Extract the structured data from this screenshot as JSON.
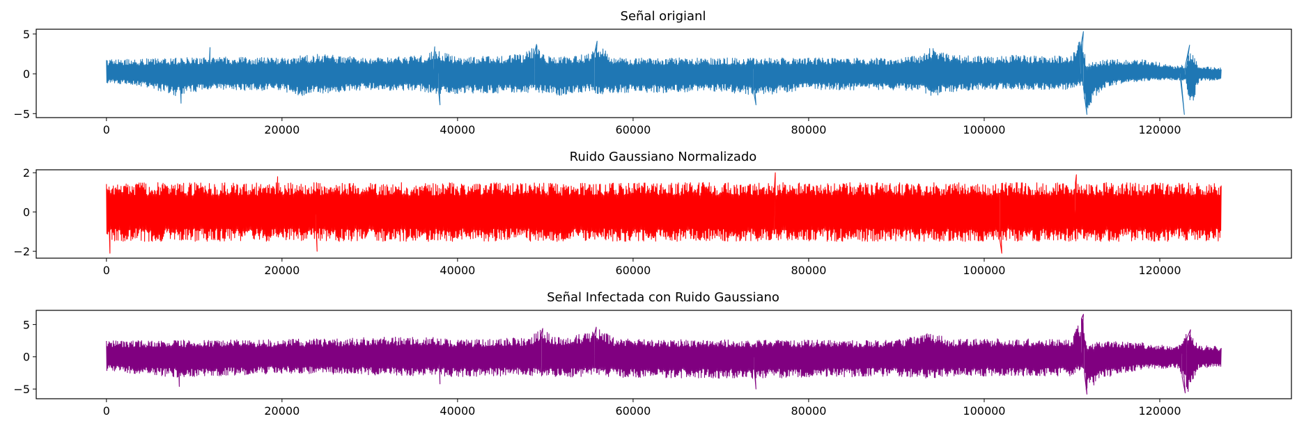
{
  "chart_data": [
    {
      "type": "line",
      "title": "Señal origianl",
      "xlabel": "",
      "ylabel": "",
      "xlim": [
        -8000,
        135000
      ],
      "ylim": [
        -5.5,
        5.6
      ],
      "x_ticks": [
        0,
        20000,
        40000,
        60000,
        80000,
        100000,
        120000
      ],
      "y_ticks": [
        -5,
        0,
        5
      ],
      "grid": false,
      "series": [
        {
          "color": "#1f77b4",
          "n_samples": 127000,
          "envelope": {
            "x": [
              0,
              2000,
              5000,
              8000,
              12000,
              20000,
              22000,
              24000,
              30000,
              36000,
              37500,
              40000,
              47500,
              49000,
              50500,
              52000,
              55000,
              56000,
              58000,
              65000,
              70000,
              74000,
              80000,
              90000,
              93000,
              94000,
              96000,
              100000,
              105000,
              110000,
              111200,
              111600,
              112500,
              114000,
              118000,
              122000,
              123000,
              123500,
              124500,
              127000
            ],
            "upper": [
              1.9,
              1.9,
              1.9,
              2.0,
              2.2,
              2.0,
              2.3,
              2.5,
              2.0,
              2.3,
              3.2,
              2.0,
              2.5,
              3.6,
              2.1,
              2.2,
              2.5,
              3.8,
              2.0,
              2.0,
              2.0,
              2.0,
              2.0,
              2.0,
              2.4,
              3.4,
              2.4,
              2.2,
              2.4,
              2.2,
              5.2,
              1.2,
              1.5,
              1.8,
              1.8,
              1.0,
              1.2,
              3.2,
              0.9,
              0.8
            ],
            "lower": [
              -1.2,
              -1.3,
              -1.8,
              -2.8,
              -2.0,
              -2.2,
              -2.8,
              -2.5,
              -2.0,
              -2.2,
              -2.6,
              -2.5,
              -2.4,
              -2.4,
              -2.6,
              -2.8,
              -2.2,
              -2.6,
              -2.4,
              -2.4,
              -2.2,
              -2.8,
              -2.0,
              -2.1,
              -2.2,
              -2.9,
              -2.3,
              -2.0,
              -2.0,
              -2.0,
              -1.5,
              -5.0,
              -3.0,
              -1.6,
              -0.9,
              -0.8,
              -1.0,
              -4.8,
              -0.9,
              -0.8
            ]
          },
          "annotated_extrema": [
            {
              "x": 8500,
              "y": -3.7
            },
            {
              "x": 11800,
              "y": 3.3
            },
            {
              "x": 37400,
              "y": 3.4
            },
            {
              "x": 38000,
              "y": -3.9
            },
            {
              "x": 49000,
              "y": 3.7
            },
            {
              "x": 55900,
              "y": 4.1
            },
            {
              "x": 74000,
              "y": -3.9
            },
            {
              "x": 111300,
              "y": 5.3
            },
            {
              "x": 111700,
              "y": -5.1
            },
            {
              "x": 122800,
              "y": -5.1
            },
            {
              "x": 123400,
              "y": 3.6
            }
          ]
        }
      ]
    },
    {
      "type": "line",
      "title": "Ruido Gaussiano Normalizado",
      "xlabel": "",
      "ylabel": "",
      "xlim": [
        -8000,
        135000
      ],
      "ylim": [
        -2.35,
        2.15
      ],
      "x_ticks": [
        0,
        20000,
        40000,
        60000,
        80000,
        100000,
        120000
      ],
      "y_ticks": [
        -2,
        0,
        2
      ],
      "grid": false,
      "series": [
        {
          "color": "#ff0000",
          "n_samples": 127000,
          "envelope": {
            "x": [
              0,
              127000
            ],
            "upper": [
              1.5,
              1.5
            ],
            "lower": [
              -1.5,
              -1.5
            ]
          },
          "annotated_extrema": [
            {
              "x": 19500,
              "y": 1.8
            },
            {
              "x": 76200,
              "y": 2.0
            },
            {
              "x": 110500,
              "y": 1.9
            },
            {
              "x": 400,
              "y": -2.1
            },
            {
              "x": 24000,
              "y": -2.0
            },
            {
              "x": 102000,
              "y": -2.1
            }
          ]
        }
      ]
    },
    {
      "type": "line",
      "title": "Señal Infectada con Ruido Gaussiano",
      "xlabel": "",
      "ylabel": "",
      "xlim": [
        -8000,
        135000
      ],
      "ylim": [
        -6.5,
        7.2
      ],
      "x_ticks": [
        0,
        20000,
        40000,
        60000,
        80000,
        100000,
        120000
      ],
      "y_ticks": [
        -5,
        0,
        5
      ],
      "grid": false,
      "series": [
        {
          "color": "#800080",
          "n_samples": 127000,
          "envelope": {
            "x": [
              0,
              8000,
              20000,
              37000,
              40000,
              48000,
              49500,
              52000,
              56000,
              58000,
              74000,
              90000,
              94000,
              96000,
              110000,
              111200,
              111700,
              113000,
              118000,
              122000,
              123200,
              124500,
              127000
            ],
            "upper": [
              2.5,
              2.6,
              2.7,
              3.2,
              2.6,
              3.0,
              4.2,
              2.8,
              4.4,
              2.8,
              2.6,
              2.6,
              3.8,
              2.8,
              2.8,
              6.5,
              1.5,
              2.5,
              2.2,
              1.6,
              4.0,
              1.8,
              1.6
            ],
            "lower": [
              -2.2,
              -3.2,
              -2.6,
              -3.0,
              -3.1,
              -3.0,
              -3.2,
              -3.2,
              -3.0,
              -3.2,
              -3.4,
              -3.0,
              -3.4,
              -3.0,
              -3.0,
              -2.0,
              -5.8,
              -3.5,
              -2.0,
              -1.8,
              -5.6,
              -1.8,
              -1.6
            ]
          },
          "annotated_extrema": [
            {
              "x": 8300,
              "y": -4.6
            },
            {
              "x": 38000,
              "y": -4.2
            },
            {
              "x": 49700,
              "y": 4.4
            },
            {
              "x": 55800,
              "y": 4.6
            },
            {
              "x": 74000,
              "y": -5.0
            },
            {
              "x": 111300,
              "y": 6.6
            },
            {
              "x": 111700,
              "y": -5.8
            },
            {
              "x": 122900,
              "y": -5.6
            },
            {
              "x": 123500,
              "y": 4.2
            }
          ]
        }
      ]
    }
  ]
}
